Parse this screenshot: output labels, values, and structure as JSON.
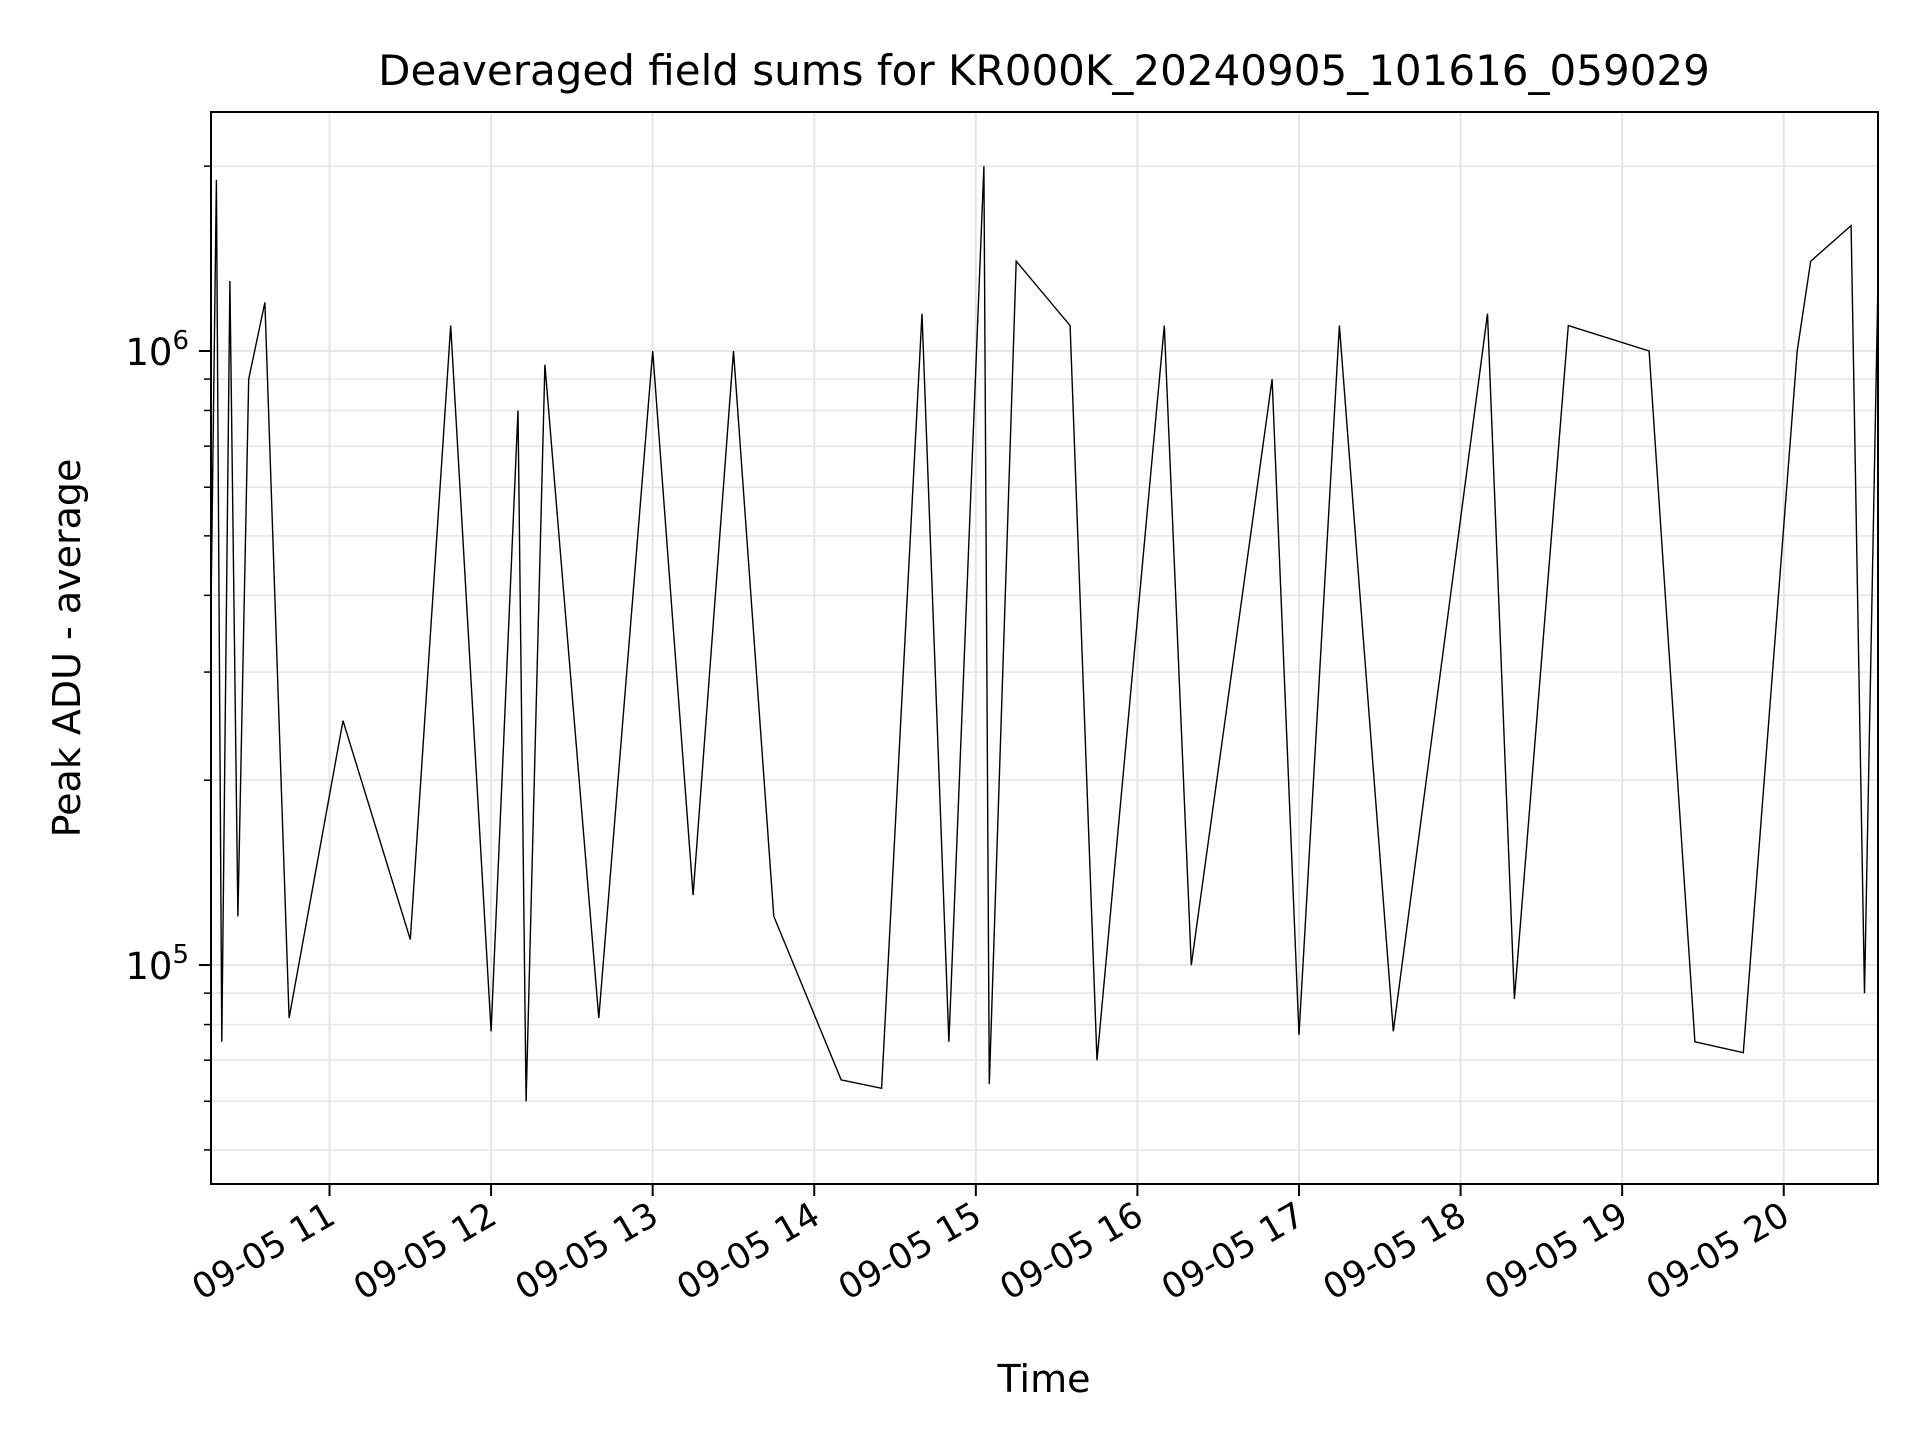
{
  "chart_data": {
    "type": "line",
    "title": "Deaveraged field sums for KR000K_20240905_101616_059029",
    "xlabel": "Time",
    "ylabel": "Peak ADU - average",
    "yscale": "log",
    "grid": true,
    "line_color": "#000000",
    "grid_color": "#e5e5e5",
    "xlim": [
      "2024-09-05 10:16",
      "2024-09-05 20:35"
    ],
    "ylim": [
      44000,
      2450000
    ],
    "x_ticks": [
      {
        "value": "2024-09-05 11:00",
        "label": "09-05 11"
      },
      {
        "value": "2024-09-05 12:00",
        "label": "09-05 12"
      },
      {
        "value": "2024-09-05 13:00",
        "label": "09-05 13"
      },
      {
        "value": "2024-09-05 14:00",
        "label": "09-05 14"
      },
      {
        "value": "2024-09-05 15:00",
        "label": "09-05 15"
      },
      {
        "value": "2024-09-05 16:00",
        "label": "09-05 16"
      },
      {
        "value": "2024-09-05 17:00",
        "label": "09-05 17"
      },
      {
        "value": "2024-09-05 18:00",
        "label": "09-05 18"
      },
      {
        "value": "2024-09-05 19:00",
        "label": "09-05 19"
      },
      {
        "value": "2024-09-05 20:00",
        "label": "09-05 20"
      }
    ],
    "y_ticks": [
      {
        "value": 100000,
        "base": "10",
        "exp": "5"
      },
      {
        "value": 1000000,
        "base": "10",
        "exp": "6"
      }
    ],
    "series": [
      {
        "points": [
          [
            "2024-09-05 10:16",
            380000
          ],
          [
            "2024-09-05 10:18",
            1900000
          ],
          [
            "2024-09-05 10:20",
            75000
          ],
          [
            "2024-09-05 10:23",
            1300000
          ],
          [
            "2024-09-05 10:26",
            120000
          ],
          [
            "2024-09-05 10:30",
            900000
          ],
          [
            "2024-09-05 10:36",
            1200000
          ],
          [
            "2024-09-05 10:45",
            82000
          ],
          [
            "2024-09-05 11:05",
            250000
          ],
          [
            "2024-09-05 11:30",
            110000
          ],
          [
            "2024-09-05 11:45",
            1100000
          ],
          [
            "2024-09-05 12:00",
            78000
          ],
          [
            "2024-09-05 12:10",
            800000
          ],
          [
            "2024-09-05 12:13",
            60000
          ],
          [
            "2024-09-05 12:20",
            950000
          ],
          [
            "2024-09-05 12:40",
            82000
          ],
          [
            "2024-09-05 13:00",
            1000000
          ],
          [
            "2024-09-05 13:15",
            130000
          ],
          [
            "2024-09-05 13:30",
            1000000
          ],
          [
            "2024-09-05 13:45",
            120000
          ],
          [
            "2024-09-05 14:10",
            65000
          ],
          [
            "2024-09-05 14:25",
            63000
          ],
          [
            "2024-09-05 14:40",
            1150000
          ],
          [
            "2024-09-05 14:50",
            75000
          ],
          [
            "2024-09-05 15:03",
            2000000
          ],
          [
            "2024-09-05 15:05",
            64000
          ],
          [
            "2024-09-05 15:15",
            1400000
          ],
          [
            "2024-09-05 15:35",
            1100000
          ],
          [
            "2024-09-05 15:45",
            70000
          ],
          [
            "2024-09-05 16:10",
            1100000
          ],
          [
            "2024-09-05 16:20",
            100000
          ],
          [
            "2024-09-05 16:50",
            900000
          ],
          [
            "2024-09-05 17:00",
            77000
          ],
          [
            "2024-09-05 17:15",
            1100000
          ],
          [
            "2024-09-05 17:35",
            78000
          ],
          [
            "2024-09-05 18:10",
            1150000
          ],
          [
            "2024-09-05 18:20",
            88000
          ],
          [
            "2024-09-05 18:40",
            1100000
          ],
          [
            "2024-09-05 19:10",
            1000000
          ],
          [
            "2024-09-05 19:27",
            75000
          ],
          [
            "2024-09-05 19:45",
            72000
          ],
          [
            "2024-09-05 20:05",
            1000000
          ],
          [
            "2024-09-05 20:10",
            1400000
          ],
          [
            "2024-09-05 20:25",
            1600000
          ],
          [
            "2024-09-05 20:30",
            90000
          ],
          [
            "2024-09-05 20:35",
            1300000
          ]
        ]
      }
    ]
  }
}
